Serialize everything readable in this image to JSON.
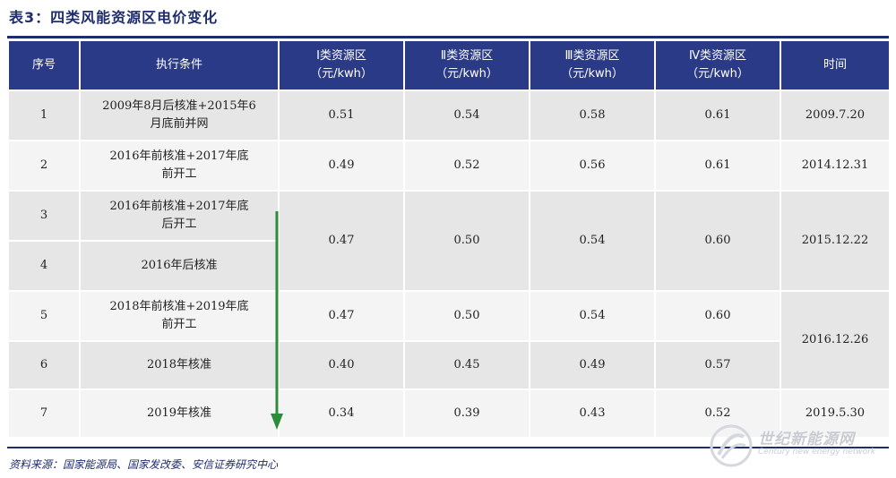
{
  "title": "表3：四类风能资源区电价变化",
  "header": {
    "col1": "序号",
    "col2": "执行条件",
    "col3_l1": "Ⅰ类资源区",
    "col3_l2": "（元/kwh）",
    "col4_l1": "Ⅱ类资源区",
    "col4_l2": "（元/kwh）",
    "col5_l1": "Ⅲ类资源区",
    "col5_l2": "（元/kwh）",
    "col6_l1": "Ⅳ类资源区",
    "col6_l2": "（元/kwh）",
    "col7": "时间"
  },
  "rows": [
    {
      "no": "1",
      "cond_l1": "2009年8月后核准+2015年6",
      "cond_l2": "月底前并网",
      "c1": "0.51",
      "c2": "0.54",
      "c3": "0.58",
      "c4": "0.61",
      "time": "2009.7.20"
    },
    {
      "no": "2",
      "cond_l1": "2016年前核准+2017年底",
      "cond_l2": "前开工",
      "c1": "0.49",
      "c2": "0.52",
      "c3": "0.56",
      "c4": "0.61",
      "time": "2014.12.31"
    },
    {
      "no": "3",
      "cond_l1": "2016年前核准+2017年底",
      "cond_l2": "后开工",
      "c1": "0.47",
      "c2": "0.50",
      "c3": "0.54",
      "c4": "0.60",
      "time": "2015.12.22"
    },
    {
      "no": "4",
      "cond_l1": "2016年后核准",
      "cond_l2": ""
    },
    {
      "no": "5",
      "cond_l1": "2018年前核准+2019年底",
      "cond_l2": "前开工",
      "c1": "0.47",
      "c2": "0.50",
      "c3": "0.54",
      "c4": "0.60",
      "time": "2016.12.26"
    },
    {
      "no": "6",
      "cond_l1": "2018年核准",
      "cond_l2": "",
      "c1": "0.40",
      "c2": "0.45",
      "c3": "0.49",
      "c4": "0.57"
    },
    {
      "no": "7",
      "cond_l1": "2019年核准",
      "cond_l2": "",
      "c1": "0.34",
      "c2": "0.39",
      "c3": "0.43",
      "c4": "0.52",
      "time": "2019.5.30"
    }
  ],
  "source": "资料来源：国家能源局、国家发改委、安信证券研究中心",
  "watermark": {
    "name": "世纪新能源网",
    "sub": "Century new energy network"
  },
  "colors": {
    "header_bg": "#2b3a86",
    "title": "#1f2d6e",
    "arrow": "#2e8b3a",
    "row_gray": "#e6e6e6",
    "row_light": "#f4f4f4"
  }
}
